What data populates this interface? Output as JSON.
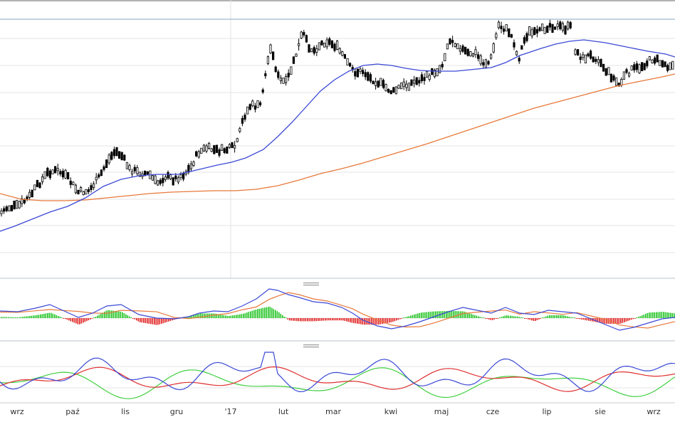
{
  "chart_data": [
    {
      "type": "candlestick",
      "panel": "price",
      "grid": true,
      "x_tick_labels": [
        "wrz",
        "paź",
        "lis",
        "gru",
        "'17",
        "lut",
        "mar",
        "kwi",
        "maj",
        "cze",
        "lip",
        "sie",
        "wrz"
      ],
      "series": [
        {
          "role": "candles",
          "color": "#000000"
        },
        {
          "role": "moving-average-short",
          "color": "#3b49d6"
        },
        {
          "role": "moving-average-long",
          "color": "#e8793a"
        }
      ]
    },
    {
      "type": "line",
      "panel": "oscillator-macd",
      "series": [
        {
          "role": "line-fast",
          "color": "#3b49d6"
        },
        {
          "role": "line-slow",
          "color": "#e8793a"
        },
        {
          "role": "histogram-positive",
          "color": "#22c322"
        },
        {
          "role": "histogram-negative",
          "color": "#e02020"
        }
      ]
    },
    {
      "type": "line",
      "panel": "oscillator-dmi",
      "series": [
        {
          "role": "line-blue",
          "color": "#3b49d6"
        },
        {
          "role": "line-red",
          "color": "#e03030"
        },
        {
          "role": "line-green",
          "color": "#3fcf3f"
        }
      ]
    }
  ],
  "colors": {
    "grid": "#e6e6e6",
    "divider": "#9aa9b8",
    "crosshair": "#e0e0e0",
    "candle": "#000000",
    "ma_short": "#3b49d6",
    "ma_long": "#e8793a",
    "hist_pos": "#22c322",
    "hist_neg": "#e02020",
    "dmi_red": "#e03030",
    "dmi_green": "#3fcf3f"
  },
  "icons": {
    "panel_handle_1": "resize-handle-icon",
    "panel_handle_2": "resize-handle-icon"
  }
}
